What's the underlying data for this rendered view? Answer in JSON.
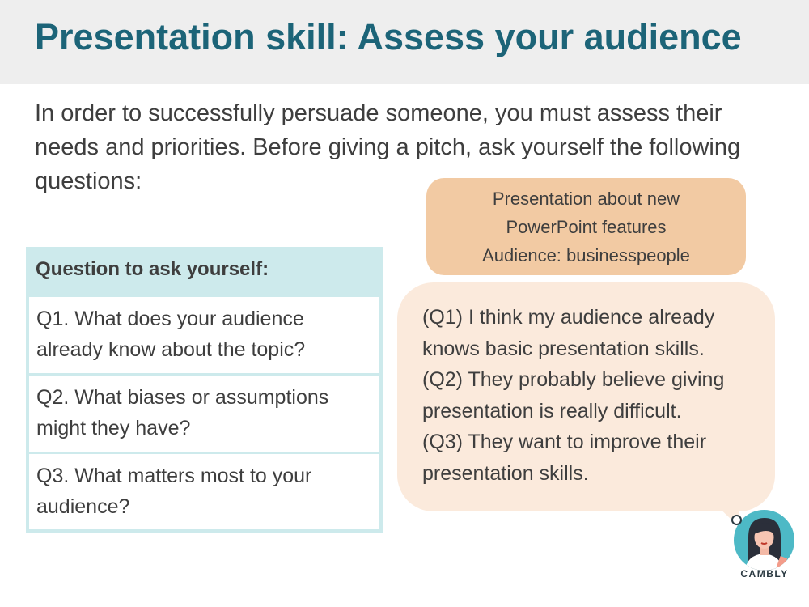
{
  "header": {
    "title": "Presentation skill: Assess your audience"
  },
  "intro": {
    "text": "In order to successfully persuade someone, you must assess their needs and priorities. Before giving a pitch, ask yourself the following questions:"
  },
  "questions": {
    "heading": "Question to ask yourself:",
    "items": [
      {
        "line1": "Q1. What does your audience",
        "line2": "already know about the topic?"
      },
      {
        "line1": "Q2. What biases or assumptions",
        "line2": "might they have?"
      },
      {
        "line1": "Q3. What matters most to your",
        "line2": "audience?"
      }
    ]
  },
  "topic_box": {
    "line1": "Presentation about new",
    "line2": "PowerPoint features",
    "line3": "Audience: businesspeople"
  },
  "answer_bubble": {
    "lines": [
      "(Q1) I think my audience already",
      "knows basic presentation skills.",
      "(Q2) They probably believe giving",
      "presentation is really difficult.",
      "(Q3) They want to improve their",
      "presentation skills."
    ]
  },
  "brand": {
    "name": "CAMBLY"
  },
  "colors": {
    "title": "#1c6478",
    "header_bg": "#eeeeee",
    "table_accent": "#cdeaec",
    "topic_bg": "#f2caa3",
    "bubble_bg": "#fbeadc",
    "avatar_bg": "#4db9c6"
  }
}
